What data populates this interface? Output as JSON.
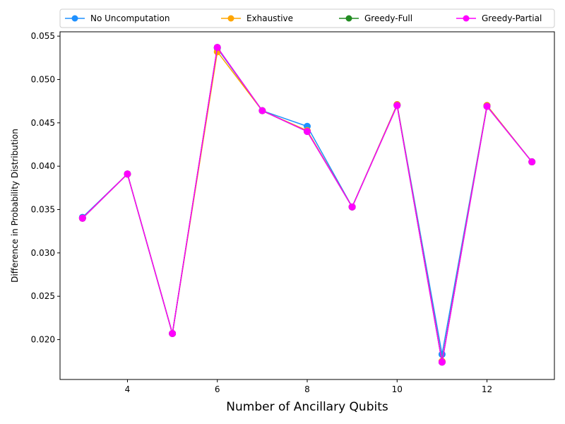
{
  "chart_data": {
    "type": "line",
    "title": "",
    "xlabel": "Number of Ancillary Qubits",
    "ylabel": "Difference in Probability Distribution",
    "xlim": [
      2.5,
      13.5
    ],
    "ylim": [
      0.0154,
      0.0555
    ],
    "x_ticks": [
      4,
      6,
      8,
      10,
      12
    ],
    "y_ticks": [
      0.02,
      0.025,
      0.03,
      0.035,
      0.04,
      0.045,
      0.05,
      0.055
    ],
    "y_tick_labels": [
      "0.020",
      "0.025",
      "0.030",
      "0.035",
      "0.040",
      "0.045",
      "0.050",
      "0.055"
    ],
    "grid": false,
    "legend": {
      "placement": "top",
      "columns": 4
    },
    "x": [
      3,
      4,
      5,
      6,
      7,
      8,
      9,
      10,
      11,
      12,
      13
    ],
    "series": [
      {
        "name": "No Uncomputation",
        "color": "#1e90ff",
        "values": [
          0.0341,
          0.0391,
          0.0207,
          0.0536,
          0.0464,
          0.0446,
          0.0353,
          0.0471,
          0.0183,
          0.047,
          0.0405
        ]
      },
      {
        "name": "Exhaustive",
        "color": "#ffa500",
        "values": [
          0.034,
          0.0391,
          0.0207,
          0.0532,
          0.0464,
          0.0441,
          0.0353,
          0.0471,
          0.0175,
          0.047,
          0.0405
        ]
      },
      {
        "name": "Greedy-Full",
        "color": "#228b22",
        "values": [
          0.034,
          0.0391,
          0.0207,
          0.0537,
          0.0464,
          0.044,
          0.0353,
          0.047,
          0.0174,
          0.0469,
          0.0405
        ]
      },
      {
        "name": "Greedy-Partial",
        "color": "#ff00ff",
        "values": [
          0.034,
          0.0391,
          0.0207,
          0.0537,
          0.0464,
          0.044,
          0.0353,
          0.047,
          0.0174,
          0.0469,
          0.0405
        ]
      }
    ]
  }
}
